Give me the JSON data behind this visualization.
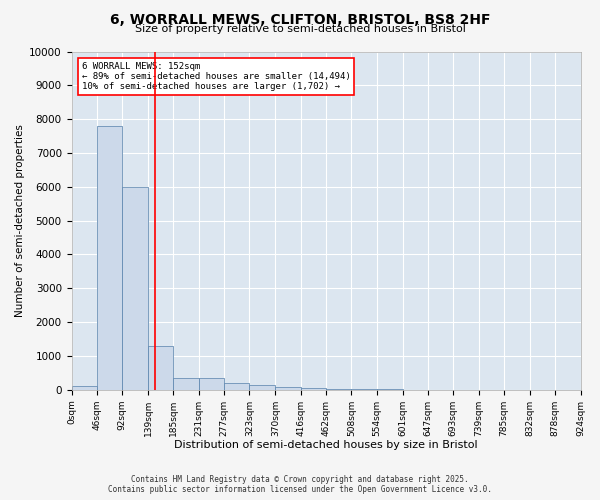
{
  "title": "6, WORRALL MEWS, CLIFTON, BRISTOL, BS8 2HF",
  "subtitle": "Size of property relative to semi-detached houses in Bristol",
  "xlabel": "Distribution of semi-detached houses by size in Bristol",
  "ylabel": "Number of semi-detached properties",
  "footer_line1": "Contains HM Land Registry data © Crown copyright and database right 2025.",
  "footer_line2": "Contains public sector information licensed under the Open Government Licence v3.0.",
  "bar_color": "#ccd9ea",
  "bar_edge_color": "#5580aa",
  "background_color": "#dce6f0",
  "grid_color": "#ffffff",
  "fig_background": "#f5f5f5",
  "red_line_x": 152,
  "annotation_line1": "6 WORRALL MEWS: 152sqm",
  "annotation_line2": "← 89% of semi-detached houses are smaller (14,494)",
  "annotation_line3": "10% of semi-detached houses are larger (1,702) →",
  "bin_edges": [
    0,
    46,
    92,
    139,
    185,
    231,
    277,
    323,
    370,
    416,
    462,
    508,
    554,
    601,
    647,
    693,
    739,
    785,
    832,
    878,
    924
  ],
  "bin_labels": [
    "0sqm",
    "46sqm",
    "92sqm",
    "139sqm",
    "185sqm",
    "231sqm",
    "277sqm",
    "323sqm",
    "370sqm",
    "416sqm",
    "462sqm",
    "508sqm",
    "554sqm",
    "601sqm",
    "647sqm",
    "693sqm",
    "739sqm",
    "785sqm",
    "832sqm",
    "878sqm",
    "924sqm"
  ],
  "bar_heights": [
    100,
    7800,
    6000,
    1300,
    350,
    350,
    200,
    130,
    75,
    40,
    20,
    10,
    8,
    5,
    4,
    3,
    2,
    2,
    1,
    1
  ],
  "ylim": [
    0,
    10000
  ],
  "yticks": [
    0,
    1000,
    2000,
    3000,
    4000,
    5000,
    6000,
    7000,
    8000,
    9000,
    10000
  ]
}
